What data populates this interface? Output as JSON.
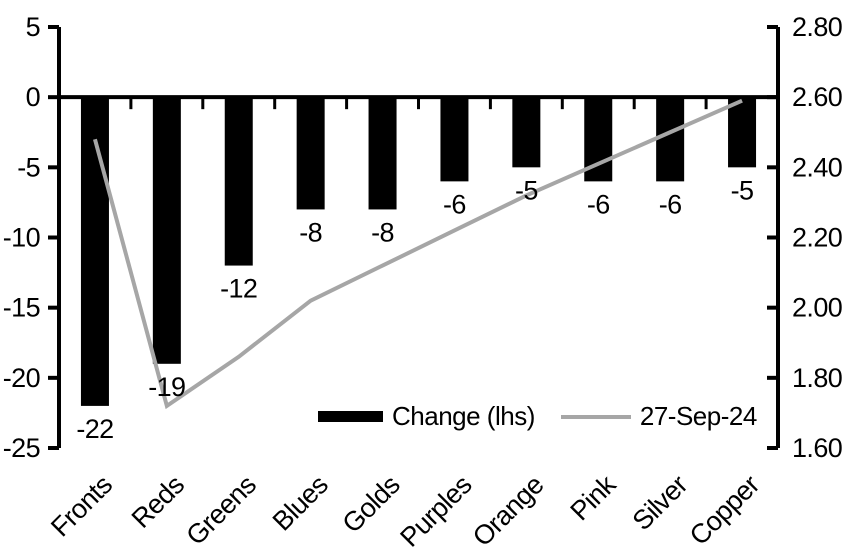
{
  "chart_data": {
    "type": "bar",
    "subtype": "bar-and-line-dual-axis",
    "title": "",
    "categories": [
      "Fronts",
      "Reds",
      "Greens",
      "Blues",
      "Golds",
      "Purples",
      "Orange",
      "Pink",
      "Silver",
      "Copper"
    ],
    "series": [
      {
        "name": "Change (lhs)",
        "type": "bar",
        "axis": "left",
        "color": "#000000",
        "values": [
          -22,
          -19,
          -12,
          -8,
          -8,
          -6,
          -5,
          -6,
          -6,
          -5
        ]
      },
      {
        "name": "27-Sep-24",
        "type": "line",
        "axis": "right",
        "color": "#a6a6a6",
        "values": [
          2.48,
          1.72,
          1.86,
          2.02,
          2.12,
          2.22,
          2.32,
          2.41,
          2.5,
          2.59
        ]
      }
    ],
    "bar_labels": [
      "-22",
      "-19",
      "-12",
      "-8",
      "-8",
      "-6",
      "-5",
      "-6",
      "-6",
      "-5"
    ],
    "left_axis": {
      "min": -25,
      "max": 5,
      "step": 5,
      "ticks": [
        "5",
        "0",
        "-5",
        "-10",
        "-15",
        "-20",
        "-25"
      ]
    },
    "right_axis": {
      "min": 1.6,
      "max": 2.8,
      "step": 0.2,
      "ticks": [
        "2.80",
        "2.60",
        "2.40",
        "2.20",
        "2.00",
        "1.80",
        "1.60"
      ]
    },
    "grid": false,
    "legend": {
      "position": "bottom-inside",
      "items": [
        {
          "label": "Change (lhs)",
          "swatch": "bar",
          "color": "#000000"
        },
        {
          "label": "27-Sep-24",
          "swatch": "line",
          "color": "#a6a6a6"
        }
      ]
    },
    "axis_color": "#000000",
    "category_label_rotation_deg": -45
  }
}
